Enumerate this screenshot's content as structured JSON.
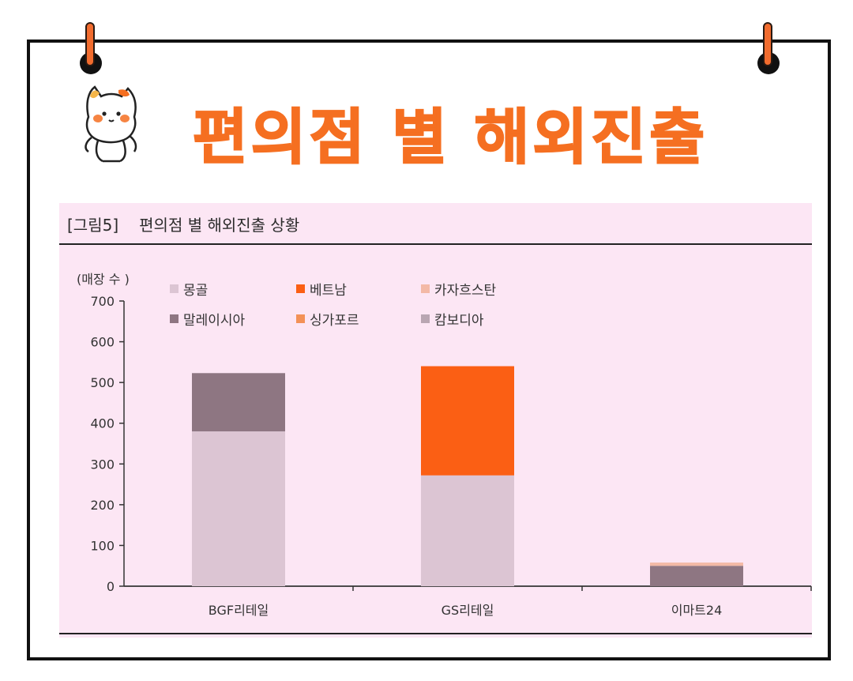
{
  "header": {
    "title": "편의점 별 해외진출"
  },
  "figure": {
    "caption_tag": "[그림5]",
    "caption_text": "편의점 별 해외진출 상황"
  },
  "colors": {
    "mongolia": "#dcc5d3",
    "vietnam": "#fb5f14",
    "kazakhstan": "#f3b9a6",
    "malaysia": "#8e7682",
    "singapore": "#f39157",
    "cambodia": "#b9a6b2",
    "accent": "#f56f21"
  },
  "chart_data": {
    "type": "bar",
    "stacked": true,
    "ylabel": "(매장 수 )",
    "ylim": [
      0,
      700
    ],
    "yticks": [
      0,
      100,
      200,
      300,
      400,
      500,
      600,
      700
    ],
    "categories": [
      "BGF리테일",
      "GS리테일",
      "이마트24"
    ],
    "series": [
      {
        "name": "몽골",
        "color_key": "mongolia",
        "values": [
          380,
          272,
          0
        ]
      },
      {
        "name": "말레이시아",
        "color_key": "malaysia",
        "values": [
          143,
          0,
          50
        ]
      },
      {
        "name": "베트남",
        "color_key": "vietnam",
        "values": [
          0,
          268,
          0
        ]
      },
      {
        "name": "싱가포르",
        "color_key": "singapore",
        "values": [
          0,
          0,
          0
        ]
      },
      {
        "name": "카자흐스탄",
        "color_key": "kazakhstan",
        "values": [
          0,
          0,
          8
        ]
      },
      {
        "name": "캄보디아",
        "color_key": "cambodia",
        "values": [
          0,
          0,
          0
        ]
      }
    ],
    "legend_order": [
      "몽골",
      "베트남",
      "카자흐스탄",
      "말레이시아",
      "싱가포르",
      "캄보디아"
    ],
    "legend_position": "top",
    "grid": false
  }
}
